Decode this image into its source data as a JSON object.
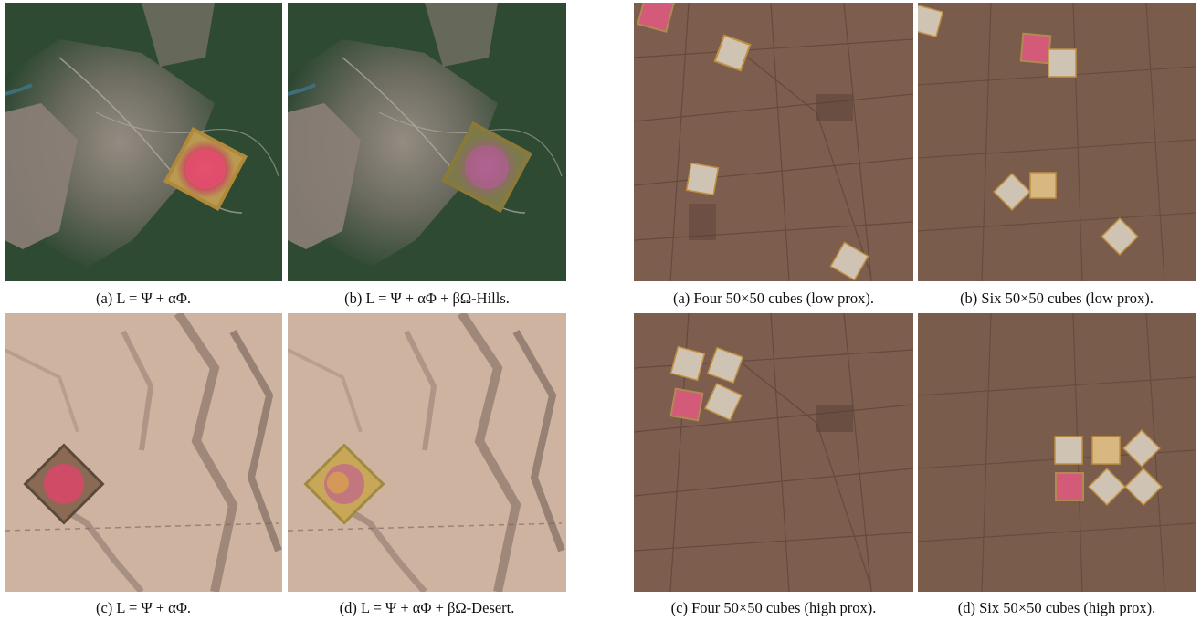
{
  "figure_left": {
    "captions": {
      "a": "(a) L = Ψ + αΦ.",
      "b": "(b) L = Ψ + αΦ + βΩ-Hills.",
      "c": "(c) L = Ψ + αΦ.",
      "d": "(d) L = Ψ + αΦ + βΩ-Desert."
    }
  },
  "figure_right": {
    "captions": {
      "a": "(a) Four 50×50 cubes (low prox).",
      "b": "(b) Six 50×50 cubes (low prox).",
      "c": "(c) Four 50×50 cubes (high prox).",
      "d": "(d) Six 50×50 cubes (high prox)."
    }
  },
  "colors": {
    "hills_vegetation": "#2f4a33",
    "hills_urban": "#8a8079",
    "desert_sand": "#cdb3a0",
    "desert_dark": "#6b5750",
    "farmland": "#7d5d4d",
    "farmland_dark": "#4f3a32",
    "patch_red": "#d94a6a",
    "patch_gold": "#c8a040",
    "cube_pale": "#cfc4b4"
  }
}
